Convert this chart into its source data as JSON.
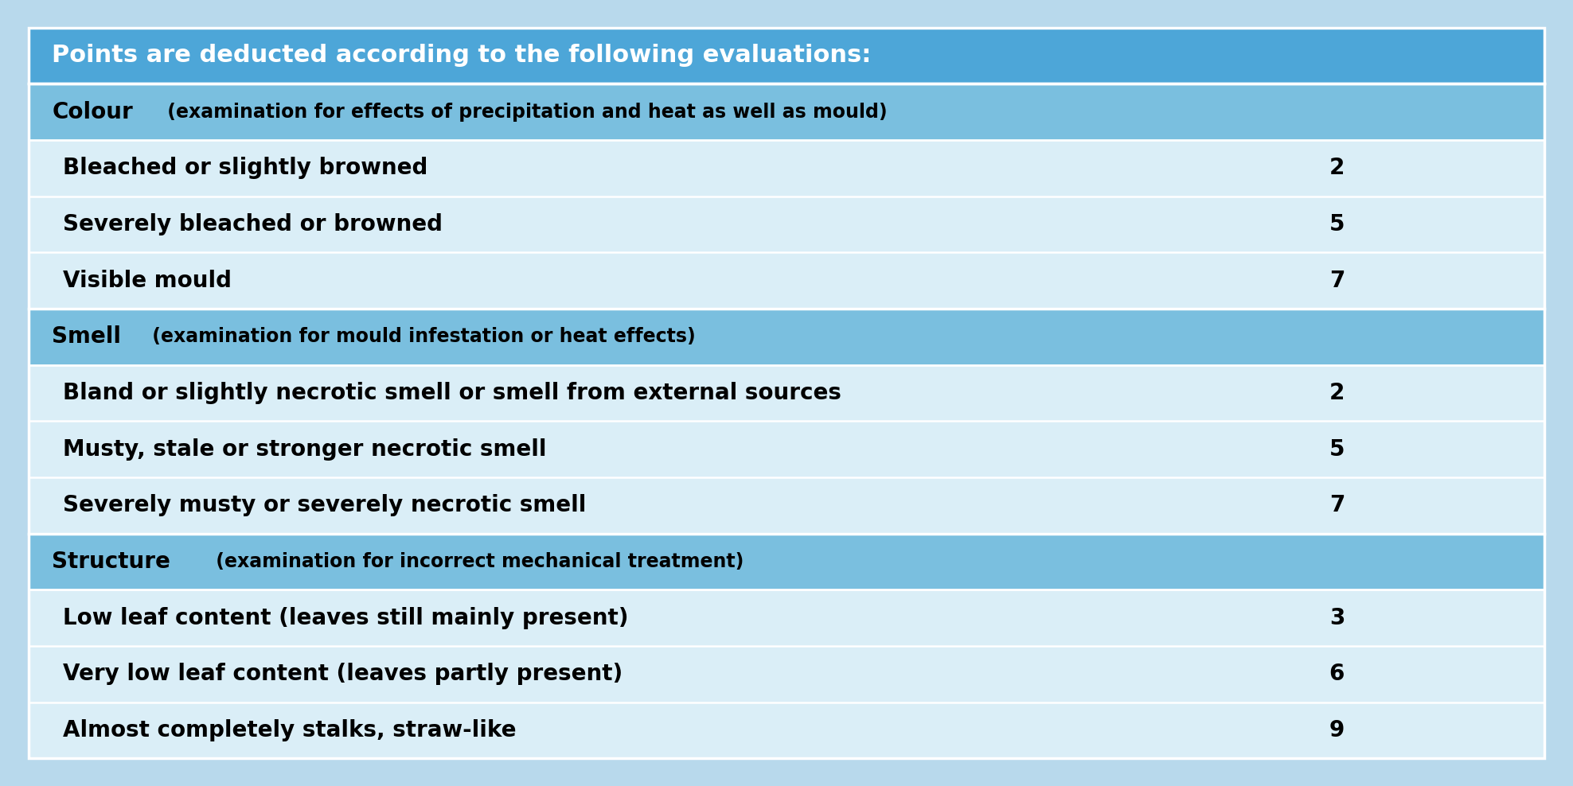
{
  "title": "Points are deducted according to the following evaluations:",
  "title_bg": "#4da6d8",
  "title_text_color": "#ffffff",
  "header_bg": "#7abfdf",
  "row_bg_light": "#daeef7",
  "row_bg_white": "#eaf5fb",
  "outer_bg": "#b8d9ec",
  "sections": [
    {
      "header": "Colour",
      "header_sub": " (examination for effects of precipitation and heat as well as mould)",
      "rows": [
        {
          "label": "Bleached or slightly browned",
          "value": "2"
        },
        {
          "label": "Severely bleached or browned",
          "value": "5"
        },
        {
          "label": "Visible mould",
          "value": "7"
        }
      ]
    },
    {
      "header": "Smell",
      "header_sub": " (examination for mould infestation or heat effects)",
      "rows": [
        {
          "label": "Bland or slightly necrotic smell or smell from external sources",
          "value": "2"
        },
        {
          "label": "Musty, stale or stronger necrotic smell",
          "value": "5"
        },
        {
          "label": "Severely musty or severely necrotic smell",
          "value": "7"
        }
      ]
    },
    {
      "header": "Structure",
      "header_sub": " (examination for incorrect mechanical treatment)",
      "rows": [
        {
          "label": "Low leaf content (leaves still mainly present)",
          "value": "3"
        },
        {
          "label": "Very low leaf content (leaves partly present)",
          "value": "6"
        },
        {
          "label": "Almost completely stalks, straw-like",
          "value": "9"
        }
      ]
    }
  ],
  "figsize": [
    19.76,
    9.88
  ],
  "dpi": 100,
  "title_fontsize": 22,
  "header_fontsize": 20,
  "header_sub_fontsize": 17,
  "row_fontsize": 20,
  "value_fontsize": 20
}
